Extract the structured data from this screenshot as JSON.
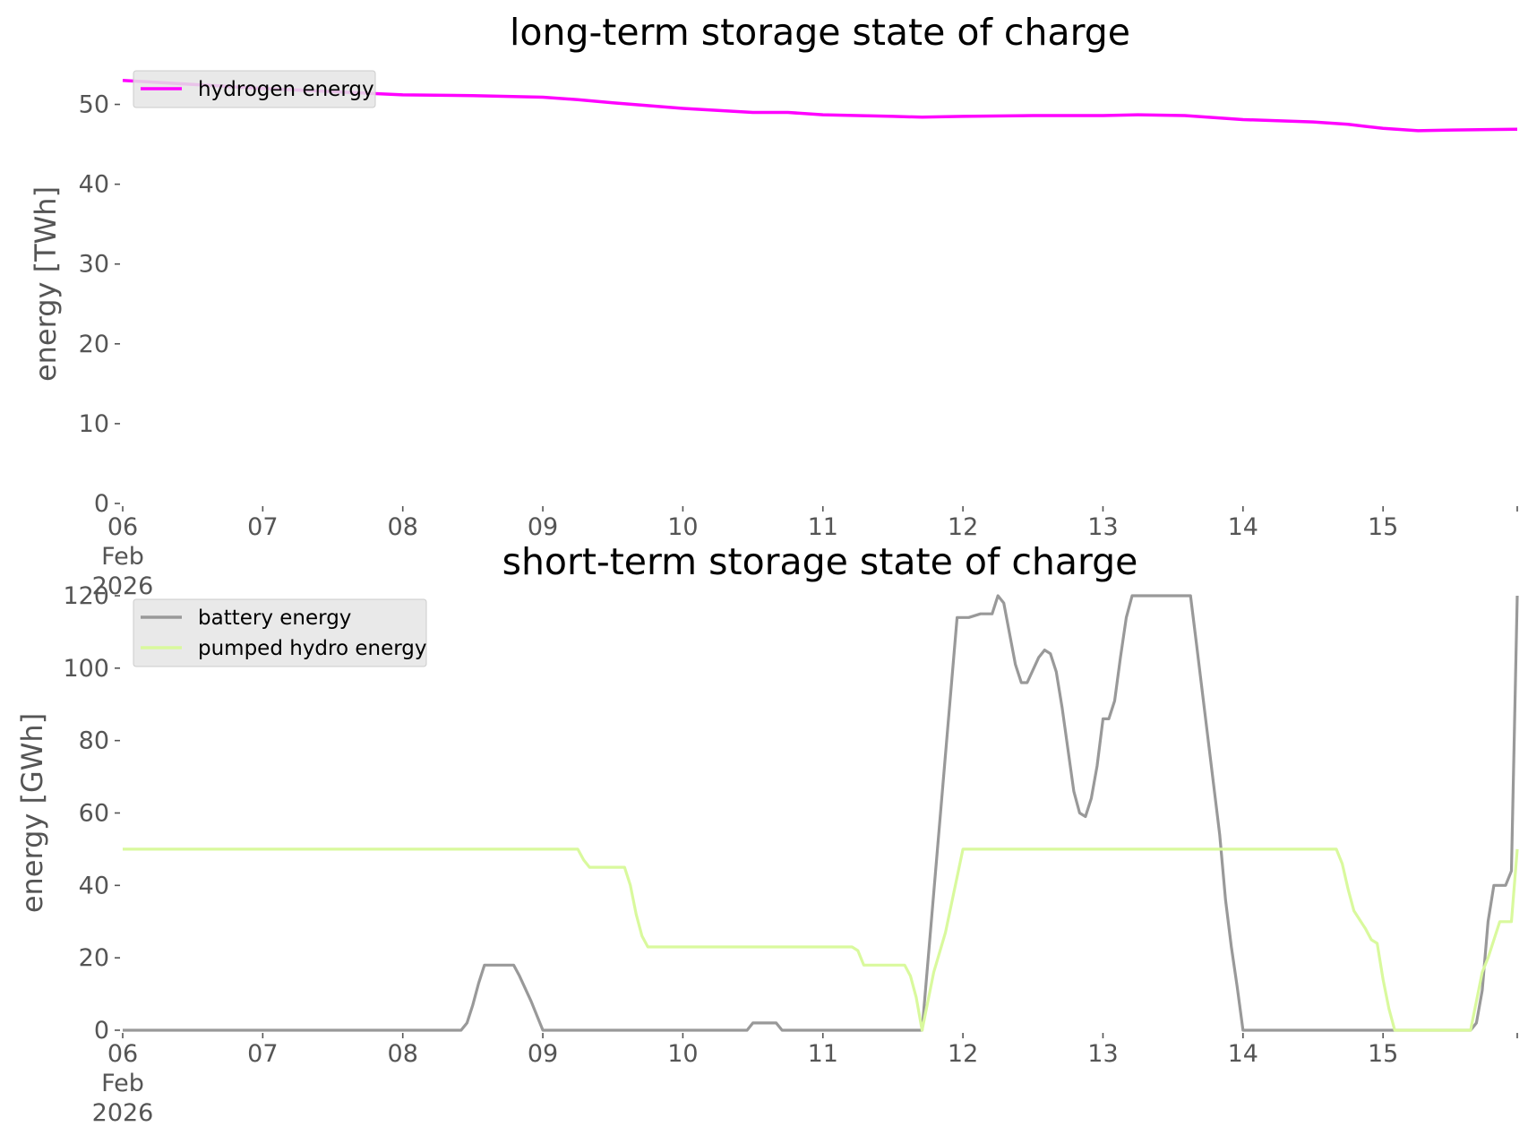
{
  "chart_data": [
    {
      "type": "line",
      "title": "long-term storage state of charge",
      "xlabel": "",
      "ylabel": "energy [TWh]",
      "xlim": [
        "2026-02-06",
        "2026-02-15 23:00"
      ],
      "x_ticks": [
        "06",
        "07",
        "08",
        "09",
        "10",
        "11",
        "12",
        "13",
        "14",
        "15"
      ],
      "x_first_tick_extra": [
        "Feb",
        "2026"
      ],
      "ylim": [
        0,
        55
      ],
      "y_ticks": [
        0,
        10,
        20,
        30,
        40,
        50
      ],
      "grid": false,
      "legend_position": "top-left",
      "series": [
        {
          "name": "hydrogen energy",
          "color": "#ff00ff",
          "points": [
            [
              "2026-02-06 00:00",
              53.0
            ],
            [
              "2026-02-06 12:00",
              52.5
            ],
            [
              "2026-02-07 00:00",
              52.0
            ],
            [
              "2026-02-07 12:00",
              51.6
            ],
            [
              "2026-02-08 00:00",
              51.2
            ],
            [
              "2026-02-08 12:00",
              51.1
            ],
            [
              "2026-02-09 00:00",
              50.9
            ],
            [
              "2026-02-09 06:00",
              50.6
            ],
            [
              "2026-02-09 12:00",
              50.2
            ],
            [
              "2026-02-10 00:00",
              49.5
            ],
            [
              "2026-02-10 12:00",
              49.0
            ],
            [
              "2026-02-10 18:00",
              49.0
            ],
            [
              "2026-02-11 00:00",
              48.7
            ],
            [
              "2026-02-11 12:00",
              48.5
            ],
            [
              "2026-02-11 17:00",
              48.4
            ],
            [
              "2026-02-12 00:00",
              48.5
            ],
            [
              "2026-02-12 12:00",
              48.6
            ],
            [
              "2026-02-13 00:00",
              48.6
            ],
            [
              "2026-02-13 06:00",
              48.7
            ],
            [
              "2026-02-13 14:00",
              48.6
            ],
            [
              "2026-02-14 00:00",
              48.1
            ],
            [
              "2026-02-14 12:00",
              47.8
            ],
            [
              "2026-02-14 18:00",
              47.5
            ],
            [
              "2026-02-15 00:00",
              47.0
            ],
            [
              "2026-02-15 06:00",
              46.7
            ],
            [
              "2026-02-15 12:00",
              46.8
            ],
            [
              "2026-02-15 23:00",
              46.9
            ]
          ]
        }
      ]
    },
    {
      "type": "line",
      "title": "short-term storage state of charge",
      "xlabel": "",
      "ylabel": "energy [GWh]",
      "xlim": [
        "2026-02-06",
        "2026-02-15 23:00"
      ],
      "x_ticks": [
        "06",
        "07",
        "08",
        "09",
        "10",
        "11",
        "12",
        "13",
        "14",
        "15"
      ],
      "x_first_tick_extra": [
        "Feb",
        "2026"
      ],
      "ylim": [
        0,
        120
      ],
      "y_ticks": [
        0,
        20,
        40,
        60,
        80,
        100,
        120
      ],
      "grid": false,
      "legend_position": "top-left",
      "series": [
        {
          "name": "battery energy",
          "color": "#999999",
          "points": [
            [
              "2026-02-06 00:00",
              0
            ],
            [
              "2026-02-08 10:00",
              0
            ],
            [
              "2026-02-08 11:00",
              2
            ],
            [
              "2026-02-08 12:00",
              7
            ],
            [
              "2026-02-08 13:00",
              13
            ],
            [
              "2026-02-08 14:00",
              18
            ],
            [
              "2026-02-08 19:00",
              18
            ],
            [
              "2026-02-08 20:00",
              15
            ],
            [
              "2026-02-08 22:00",
              8
            ],
            [
              "2026-02-09 00:00",
              0
            ],
            [
              "2026-02-10 11:00",
              0
            ],
            [
              "2026-02-10 12:00",
              2
            ],
            [
              "2026-02-10 16:00",
              2
            ],
            [
              "2026-02-10 17:00",
              0
            ],
            [
              "2026-02-11 17:00",
              0
            ],
            [
              "2026-02-11 23:00",
              114
            ],
            [
              "2026-02-12 01:00",
              114
            ],
            [
              "2026-02-12 03:00",
              115
            ],
            [
              "2026-02-12 05:00",
              115
            ],
            [
              "2026-02-12 06:00",
              120
            ],
            [
              "2026-02-12 07:00",
              118
            ],
            [
              "2026-02-12 09:00",
              101
            ],
            [
              "2026-02-12 10:00",
              96
            ],
            [
              "2026-02-12 11:00",
              96
            ],
            [
              "2026-02-12 13:00",
              103
            ],
            [
              "2026-02-12 14:00",
              105
            ],
            [
              "2026-02-12 15:00",
              104
            ],
            [
              "2026-02-12 16:00",
              99
            ],
            [
              "2026-02-12 17:00",
              89
            ],
            [
              "2026-02-12 19:00",
              66
            ],
            [
              "2026-02-12 20:00",
              60
            ],
            [
              "2026-02-12 21:00",
              59
            ],
            [
              "2026-02-12 22:00",
              64
            ],
            [
              "2026-02-12 23:00",
              73
            ],
            [
              "2026-02-13 00:00",
              86
            ],
            [
              "2026-02-13 01:00",
              86
            ],
            [
              "2026-02-13 02:00",
              91
            ],
            [
              "2026-02-13 03:00",
              103
            ],
            [
              "2026-02-13 04:00",
              114
            ],
            [
              "2026-02-13 05:00",
              120
            ],
            [
              "2026-02-13 15:00",
              120
            ],
            [
              "2026-02-13 16:00",
              107
            ],
            [
              "2026-02-13 20:00",
              54
            ],
            [
              "2026-02-13 21:00",
              36
            ],
            [
              "2026-02-13 22:00",
              23
            ],
            [
              "2026-02-13 23:00",
              12
            ],
            [
              "2026-02-14 00:00",
              0
            ],
            [
              "2026-02-15 15:00",
              0
            ],
            [
              "2026-02-15 16:00",
              2
            ],
            [
              "2026-02-15 17:00",
              11
            ],
            [
              "2026-02-15 18:00",
              30
            ],
            [
              "2026-02-15 19:00",
              40
            ],
            [
              "2026-02-15 21:00",
              40
            ],
            [
              "2026-02-15 22:00",
              44
            ],
            [
              "2026-02-15 23:00",
              120
            ]
          ]
        },
        {
          "name": "pumped hydro energy",
          "color": "#d9f99d",
          "points": [
            [
              "2026-02-06 00:00",
              50
            ],
            [
              "2026-02-09 06:00",
              50
            ],
            [
              "2026-02-09 07:00",
              47
            ],
            [
              "2026-02-09 08:00",
              45
            ],
            [
              "2026-02-09 14:00",
              45
            ],
            [
              "2026-02-09 15:00",
              40
            ],
            [
              "2026-02-09 16:00",
              32
            ],
            [
              "2026-02-09 17:00",
              26
            ],
            [
              "2026-02-09 18:00",
              23
            ],
            [
              "2026-02-11 05:00",
              23
            ],
            [
              "2026-02-11 06:00",
              22
            ],
            [
              "2026-02-11 07:00",
              18
            ],
            [
              "2026-02-11 14:00",
              18
            ],
            [
              "2026-02-11 15:00",
              15
            ],
            [
              "2026-02-11 16:00",
              9
            ],
            [
              "2026-02-11 17:00",
              0
            ],
            [
              "2026-02-11 19:00",
              16
            ],
            [
              "2026-02-11 21:00",
              27
            ],
            [
              "2026-02-12 00:00",
              50
            ],
            [
              "2026-02-14 16:00",
              50
            ],
            [
              "2026-02-14 17:00",
              46
            ],
            [
              "2026-02-14 18:00",
              39
            ],
            [
              "2026-02-14 19:00",
              33
            ],
            [
              "2026-02-14 21:00",
              28
            ],
            [
              "2026-02-14 22:00",
              25
            ],
            [
              "2026-02-14 23:00",
              24
            ],
            [
              "2026-02-15 00:00",
              14
            ],
            [
              "2026-02-15 01:00",
              6
            ],
            [
              "2026-02-15 02:00",
              0
            ],
            [
              "2026-02-15 15:00",
              0
            ],
            [
              "2026-02-15 17:00",
              16
            ],
            [
              "2026-02-15 18:00",
              20
            ],
            [
              "2026-02-15 20:00",
              30
            ],
            [
              "2026-02-15 22:00",
              30
            ],
            [
              "2026-02-15 23:00",
              50
            ]
          ]
        }
      ]
    }
  ]
}
